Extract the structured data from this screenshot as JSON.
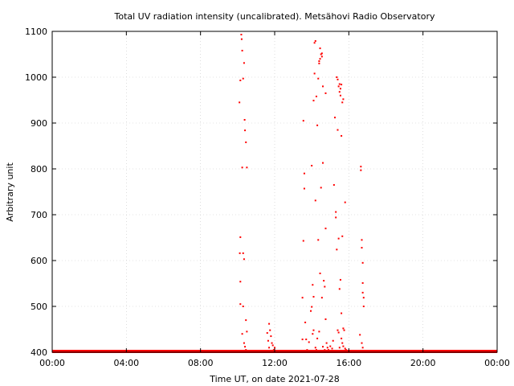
{
  "chart_data": {
    "type": "scatter",
    "title": "Total UV radiation intensity (uncalibrated). Metsähovi Radio Observatory",
    "xlabel": "Time UT, on date 2021-07-28",
    "ylabel": "Arbitrary unit",
    "xlim": [
      0,
      24
    ],
    "ylim": [
      400,
      1100
    ],
    "x_unit": "hours UT",
    "xticks": [
      {
        "value": 0,
        "label": "00:00"
      },
      {
        "value": 4,
        "label": "04:00"
      },
      {
        "value": 8,
        "label": "08:00"
      },
      {
        "value": 12,
        "label": "12:00"
      },
      {
        "value": 16,
        "label": "16:00"
      },
      {
        "value": 20,
        "label": "20:00"
      },
      {
        "value": 24,
        "label": "00:00"
      }
    ],
    "yticks": [
      {
        "value": 400,
        "label": "400"
      },
      {
        "value": 500,
        "label": "500"
      },
      {
        "value": 600,
        "label": "600"
      },
      {
        "value": 700,
        "label": "700"
      },
      {
        "value": 800,
        "label": "800"
      },
      {
        "value": 900,
        "label": "900"
      },
      {
        "value": 1000,
        "label": "1000"
      },
      {
        "value": 1100,
        "label": "1100"
      }
    ],
    "grid": true,
    "marker_color": "#ff0000",
    "baseline": {
      "x_start": 0,
      "x_end": 24,
      "y": 400
    },
    "series": [
      {
        "points": [
          [
            10.1,
            945
          ],
          [
            10.15,
            993
          ],
          [
            10.2,
            1093
          ],
          [
            10.22,
            1083
          ],
          [
            10.25,
            1058
          ],
          [
            10.3,
            997
          ],
          [
            10.35,
            1031
          ],
          [
            10.38,
            907
          ],
          [
            10.4,
            884
          ],
          [
            10.45,
            858
          ],
          [
            10.25,
            803
          ],
          [
            10.5,
            803
          ],
          [
            10.15,
            651
          ],
          [
            10.12,
            616
          ],
          [
            10.3,
            616
          ],
          [
            10.35,
            603
          ],
          [
            10.15,
            554
          ],
          [
            10.15,
            505
          ],
          [
            10.3,
            500
          ],
          [
            10.45,
            470
          ],
          [
            10.5,
            445
          ],
          [
            10.25,
            440
          ],
          [
            10.35,
            420
          ],
          [
            10.4,
            412
          ],
          [
            10.45,
            405
          ],
          [
            11.6,
            442
          ],
          [
            11.7,
            462
          ],
          [
            11.75,
            448
          ],
          [
            11.8,
            435
          ],
          [
            11.85,
            420
          ],
          [
            11.9,
            415
          ],
          [
            12.0,
            410
          ],
          [
            11.7,
            410
          ],
          [
            11.65,
            425
          ],
          [
            11.95,
            405
          ],
          [
            13.55,
            905
          ],
          [
            13.6,
            790
          ],
          [
            13.6,
            757
          ],
          [
            13.55,
            643
          ],
          [
            13.5,
            519
          ],
          [
            13.65,
            465
          ],
          [
            13.7,
            428
          ],
          [
            13.75,
            405
          ],
          [
            13.5,
            428
          ],
          [
            13.85,
            422
          ],
          [
            13.95,
            490
          ],
          [
            14.0,
            499
          ],
          [
            14.05,
            547
          ],
          [
            14.1,
            521
          ],
          [
            14.0,
            807
          ],
          [
            14.1,
            949
          ],
          [
            14.15,
            1008
          ],
          [
            14.15,
            1075
          ],
          [
            14.2,
            1079
          ],
          [
            14.25,
            958
          ],
          [
            14.3,
            895
          ],
          [
            14.35,
            997
          ],
          [
            14.4,
            1030
          ],
          [
            14.4,
            1035
          ],
          [
            14.45,
            1040
          ],
          [
            14.45,
            1063
          ],
          [
            14.5,
            1050
          ],
          [
            14.55,
            1045
          ],
          [
            14.55,
            1052
          ],
          [
            14.6,
            980
          ],
          [
            14.2,
            731
          ],
          [
            14.35,
            645
          ],
          [
            14.45,
            572
          ],
          [
            14.5,
            759
          ],
          [
            14.6,
            813
          ],
          [
            14.65,
            556
          ],
          [
            14.7,
            543
          ],
          [
            14.75,
            965
          ],
          [
            14.75,
            670
          ],
          [
            14.75,
            472
          ],
          [
            14.55,
            519
          ],
          [
            14.1,
            448
          ],
          [
            14.05,
            440
          ],
          [
            14.3,
            430
          ],
          [
            14.4,
            445
          ],
          [
            14.2,
            410
          ],
          [
            14.25,
            405
          ],
          [
            14.6,
            412
          ],
          [
            14.7,
            405
          ],
          [
            14.8,
            420
          ],
          [
            14.85,
            410
          ],
          [
            14.9,
            405
          ],
          [
            15.0,
            413
          ],
          [
            15.1,
            408
          ],
          [
            15.15,
            425
          ],
          [
            15.2,
            765
          ],
          [
            15.25,
            912
          ],
          [
            15.3,
            706
          ],
          [
            15.3,
            694
          ],
          [
            15.35,
            624
          ],
          [
            15.35,
            1000
          ],
          [
            15.4,
            995
          ],
          [
            15.4,
            885
          ],
          [
            15.45,
            980
          ],
          [
            15.5,
            985
          ],
          [
            15.5,
            968
          ],
          [
            15.55,
            975
          ],
          [
            15.55,
            960
          ],
          [
            15.6,
            984
          ],
          [
            15.65,
            945
          ],
          [
            15.7,
            952
          ],
          [
            15.6,
            872
          ],
          [
            15.45,
            648
          ],
          [
            15.55,
            558
          ],
          [
            15.5,
            538
          ],
          [
            15.65,
            653
          ],
          [
            15.8,
            727
          ],
          [
            15.6,
            485
          ],
          [
            15.4,
            448
          ],
          [
            15.45,
            443
          ],
          [
            15.7,
            452
          ],
          [
            15.75,
            448
          ],
          [
            15.6,
            430
          ],
          [
            15.65,
            420
          ],
          [
            15.7,
            413
          ],
          [
            15.8,
            408
          ],
          [
            15.85,
            405
          ],
          [
            15.5,
            410
          ],
          [
            16.6,
            438
          ],
          [
            16.65,
            805
          ],
          [
            16.65,
            797
          ],
          [
            16.7,
            645
          ],
          [
            16.7,
            628
          ],
          [
            16.75,
            595
          ],
          [
            16.75,
            551
          ],
          [
            16.75,
            530
          ],
          [
            16.8,
            519
          ],
          [
            16.8,
            500
          ],
          [
            16.7,
            420
          ],
          [
            16.75,
            410
          ]
        ]
      }
    ]
  }
}
